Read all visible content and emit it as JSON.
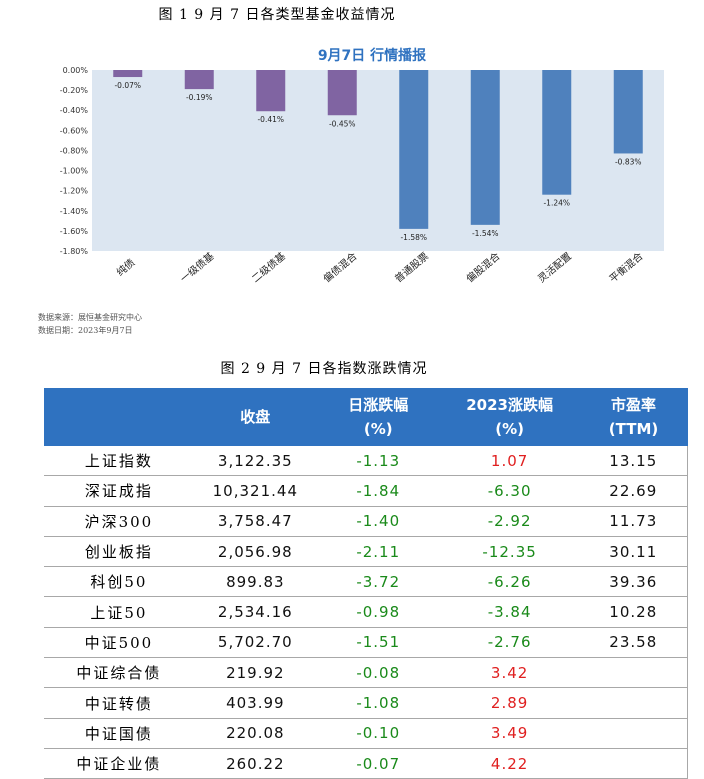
{
  "figure1_caption": "图 1  9 月 7 日各类型基金收益情况",
  "figure2_caption": "图 2  9 月 7 日各指数涨跌情况",
  "source_note": "数据来源：展恒基金研究中心",
  "date_note": "数据日期：2023年9月7日",
  "colors": {
    "purple": "#8064a2",
    "blue": "#4f81bd",
    "plot_bg": "#dce6f1",
    "header_bg": "#2f72c0"
  },
  "chart_data": {
    "type": "bar",
    "title": "9月7日  行情播报",
    "categories": [
      "纯债",
      "一级债基",
      "二级债基",
      "偏债混合",
      "普通股票",
      "偏股混合",
      "灵活配置",
      "平衡混合"
    ],
    "values": [
      -0.07,
      -0.19,
      -0.41,
      -0.45,
      -1.58,
      -1.54,
      -1.24,
      -0.83
    ],
    "data_labels": [
      "-0.07%",
      "-0.19%",
      "-0.41%",
      "-0.45%",
      "-1.58%",
      "-1.54%",
      "-1.24%",
      "-0.83%"
    ],
    "bar_colors": [
      "purple",
      "purple",
      "purple",
      "purple",
      "blue",
      "blue",
      "blue",
      "blue"
    ],
    "yticks": [
      "0.00%",
      "-0.20%",
      "-0.40%",
      "-0.60%",
      "-0.80%",
      "-1.00%",
      "-1.20%",
      "-1.40%",
      "-1.60%",
      "-1.80%"
    ],
    "ylim": [
      -1.8,
      0
    ]
  },
  "table": {
    "headers": [
      {
        "l1": "",
        "l2": ""
      },
      {
        "l1": "收盘",
        "l2": ""
      },
      {
        "l1": "日涨跌幅",
        "l2": "(%)"
      },
      {
        "l1": "2023涨跌幅",
        "l2": "(%)"
      },
      {
        "l1": "市盈率",
        "l2": "(TTM)"
      }
    ],
    "rows": [
      {
        "name": "上证指数",
        "close": "3,122.35",
        "day": "-1.13",
        "ytd": "1.07",
        "pe": "13.15"
      },
      {
        "name": "深证成指",
        "close": "10,321.44",
        "day": "-1.84",
        "ytd": "-6.30",
        "pe": "22.69"
      },
      {
        "name": "沪深300",
        "close": "3,758.47",
        "day": "-1.40",
        "ytd": "-2.92",
        "pe": "11.73"
      },
      {
        "name": "创业板指",
        "close": "2,056.98",
        "day": "-2.11",
        "ytd": "-12.35",
        "pe": "30.11"
      },
      {
        "name": "科创50",
        "close": "899.83",
        "day": "-3.72",
        "ytd": "-6.26",
        "pe": "39.36"
      },
      {
        "name": "上证50",
        "close": "2,534.16",
        "day": "-0.98",
        "ytd": "-3.84",
        "pe": "10.28"
      },
      {
        "name": "中证500",
        "close": "5,702.70",
        "day": "-1.51",
        "ytd": "-2.76",
        "pe": "23.58"
      },
      {
        "name": "中证综合债",
        "close": "219.92",
        "day": "-0.08",
        "ytd": "3.42",
        "pe": ""
      },
      {
        "name": "中证转债",
        "close": "403.99",
        "day": "-1.08",
        "ytd": "2.89",
        "pe": ""
      },
      {
        "name": "中证国债",
        "close": "220.08",
        "day": "-0.10",
        "ytd": "3.49",
        "pe": ""
      },
      {
        "name": "中证企业债",
        "close": "260.22",
        "day": "-0.07",
        "ytd": "4.22",
        "pe": ""
      }
    ]
  }
}
